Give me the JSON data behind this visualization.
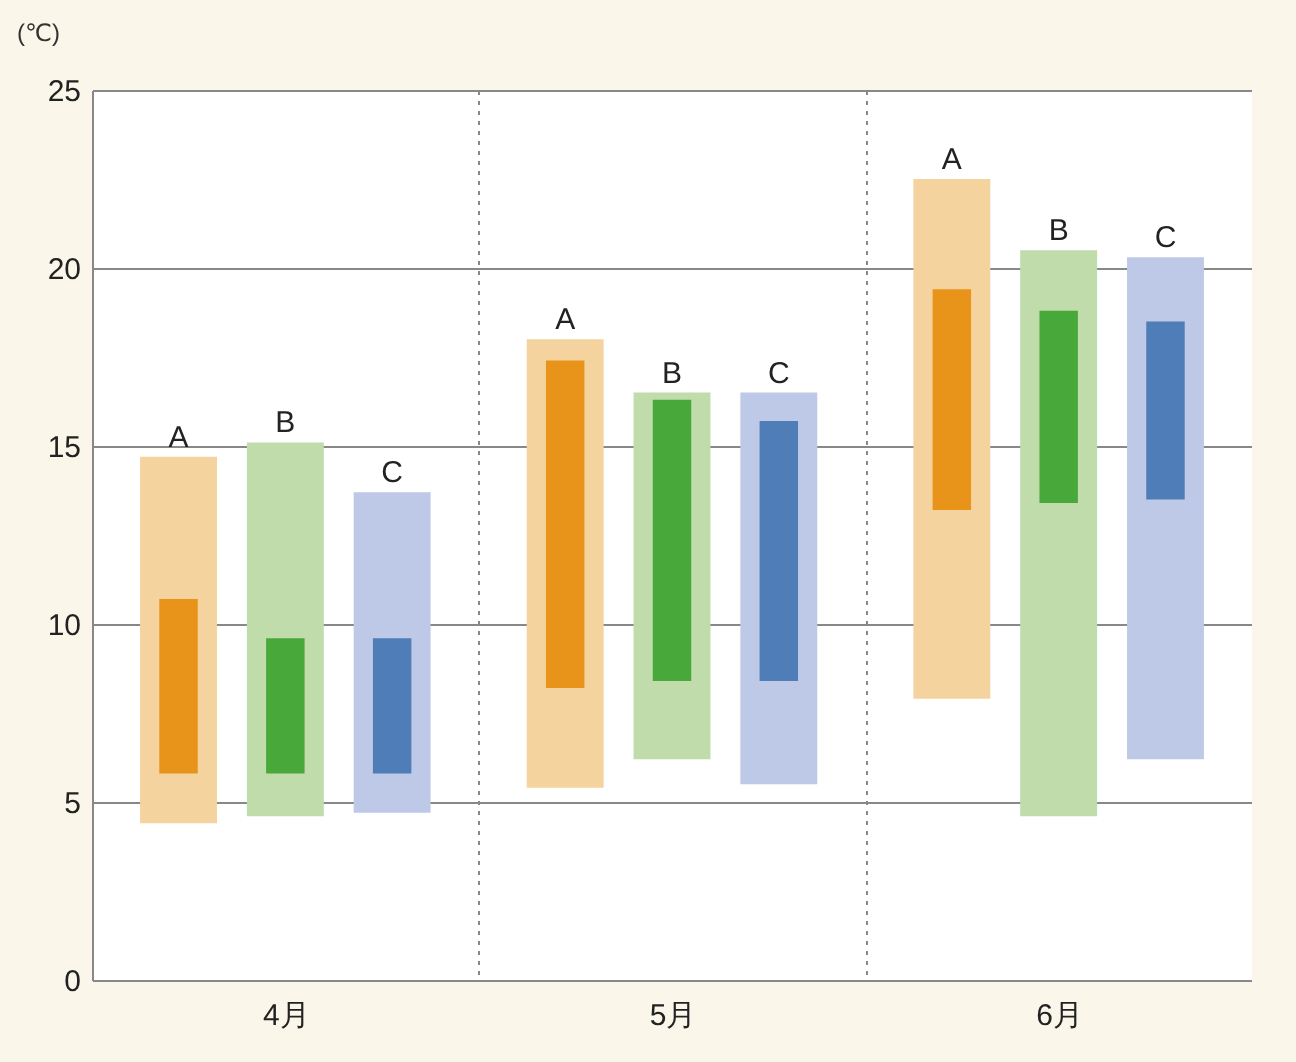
{
  "chart_data": {
    "type": "bar",
    "ylabel": "(℃)",
    "categories": [
      "4月",
      "5月",
      "6月"
    ],
    "series": [
      {
        "name": "A",
        "color": "#f4d39e",
        "base": [
          4.4,
          5.4,
          7.9
        ],
        "values": [
          10.3,
          12.6,
          14.6
        ]
      },
      {
        "color": "#e8931a",
        "base": [
          5.8,
          8.2,
          13.2
        ],
        "values": [
          4.9,
          9.2,
          6.2
        ]
      },
      {
        "name": "B",
        "color": "#bfdcaa",
        "base": [
          4.6,
          6.2,
          4.6
        ],
        "values": [
          10.5,
          10.3,
          15.9
        ]
      },
      {
        "color": "#49a83a",
        "base": [
          5.8,
          8.4,
          13.4
        ],
        "values": [
          3.8,
          7.9,
          5.4
        ]
      },
      {
        "name": "C",
        "color": "#bdc9e6",
        "base": [
          4.7,
          5.5,
          6.2
        ],
        "values": [
          9.0,
          11.0,
          14.1
        ]
      },
      {
        "color": "#4e7db8",
        "base": [
          5.8,
          8.4,
          13.5
        ],
        "values": [
          3.8,
          7.3,
          5.0
        ]
      }
    ],
    "ylim": [
      0,
      25
    ],
    "yticks": [
      0,
      5,
      10,
      15,
      20,
      25
    ],
    "grid": true
  }
}
